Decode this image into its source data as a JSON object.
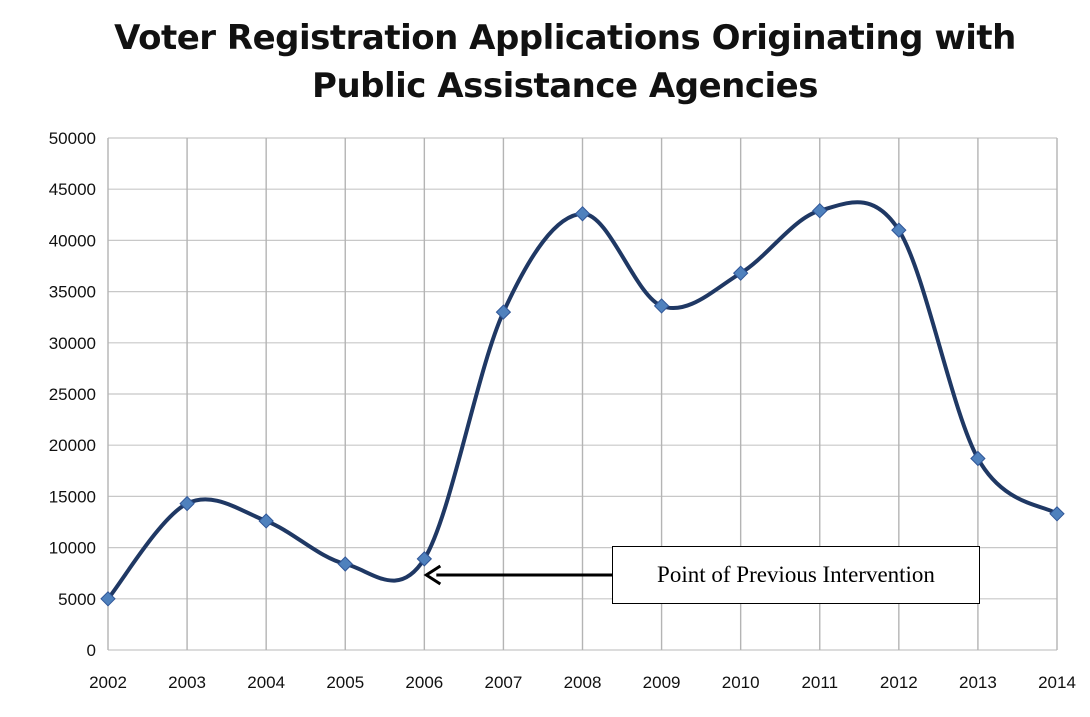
{
  "chart_data": {
    "type": "line",
    "title": "Voter Registration Applications Originating with Public Assistance Agencies",
    "title_lines": [
      "Voter Registration Applications Originating with",
      "Public Assistance Agencies"
    ],
    "categories": [
      "2002",
      "2003",
      "2004",
      "2005",
      "2006",
      "2007",
      "2008",
      "2009",
      "2010",
      "2011",
      "2012",
      "2013",
      "2014"
    ],
    "series": [
      {
        "values": [
          5000,
          14300,
          12600,
          8400,
          8900,
          33000,
          42600,
          33600,
          36800,
          42900,
          41000,
          18700,
          13300
        ]
      }
    ],
    "ylim": [
      0,
      50000
    ],
    "yticks": [
      0,
      5000,
      10000,
      15000,
      20000,
      25000,
      30000,
      35000,
      40000,
      45000,
      50000
    ],
    "smooth": true,
    "grid": "both",
    "line_color": "#1f3864",
    "marker_color": "#4f81bd",
    "annotation": {
      "text": "Point of Previous Intervention",
      "target_category": "2006"
    }
  }
}
